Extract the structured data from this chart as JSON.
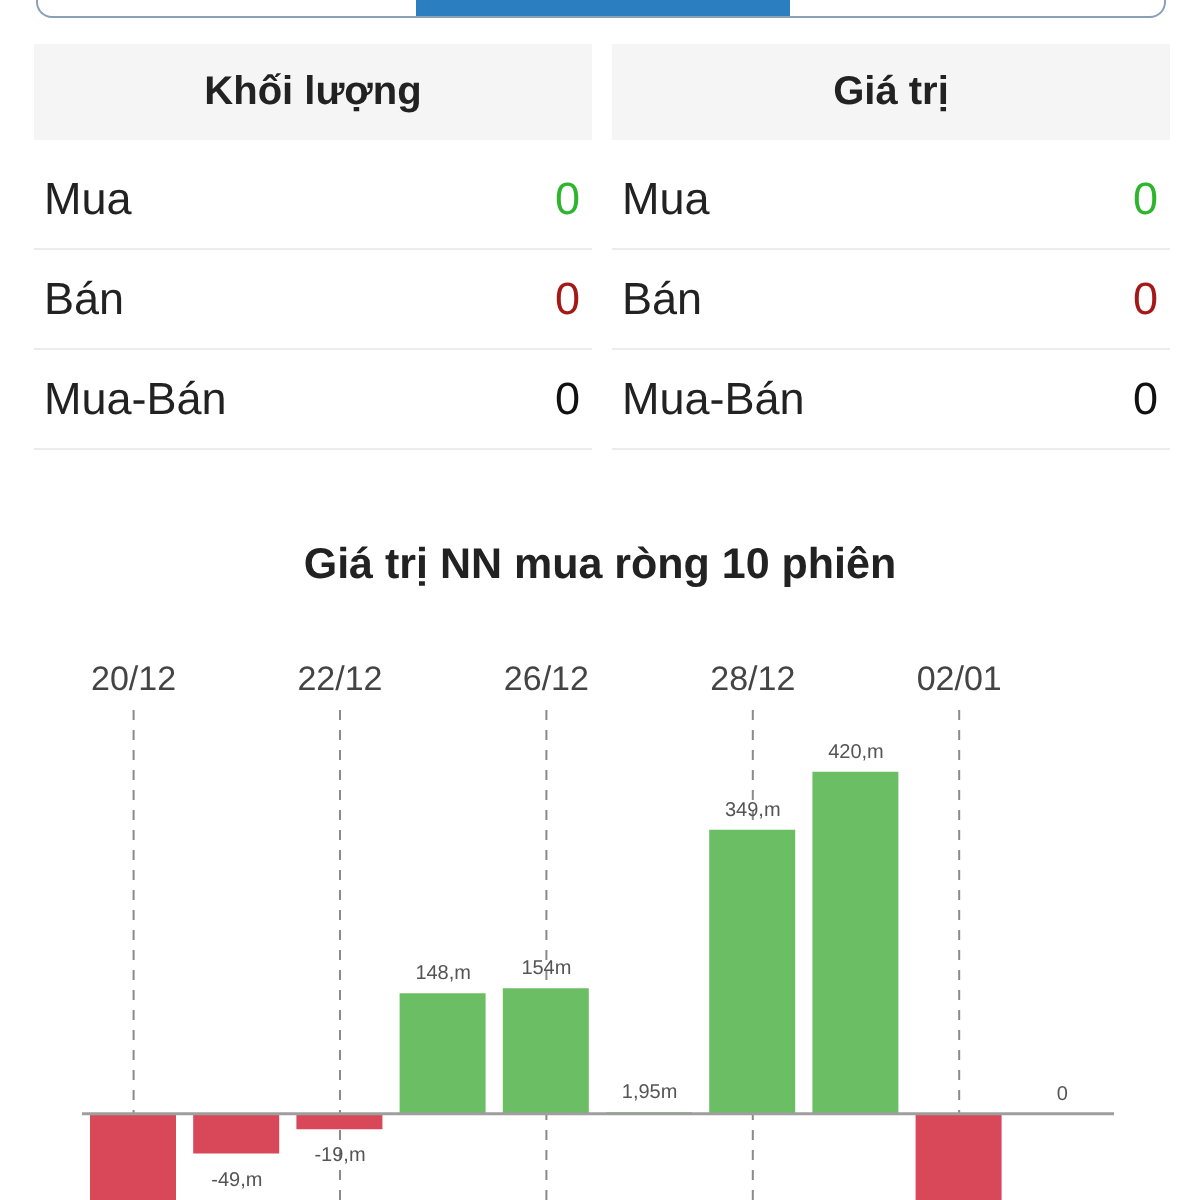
{
  "chart_data": [
    {
      "type": "other",
      "categories": [
        "Mua",
        "Bán",
        "Mua-Bán"
      ],
      "series": [
        {
          "name": "Khối lượng",
          "values": [
            0,
            0,
            0
          ],
          "colors": [
            "#2db52d",
            "#a51818",
            "#111111"
          ]
        },
        {
          "name": "Giá trị",
          "values": [
            0,
            0,
            0
          ],
          "colors": [
            "#2db52d",
            "#a51818",
            "#111111"
          ]
        }
      ],
      "data_labels": true
    },
    {
      "type": "bar",
      "title": "Giá trị NN mua ròng 10 phiên",
      "categories": [
        "20/12",
        null,
        "22/12",
        null,
        "26/12",
        null,
        "28/12",
        null,
        "02/01",
        null
      ],
      "values": [
        -106,
        -49,
        -19,
        148,
        154,
        1.95,
        349,
        420,
        -106,
        0
      ],
      "colors": [
        "#d84858",
        "#d84858",
        "#d84858",
        "#6cbe64",
        "#6cbe64",
        "#6cbe64",
        "#6cbe64",
        "#6cbe64",
        "#d84858",
        "#6cbe64"
      ],
      "value_labels": [
        null,
        "-49,m",
        "-19,m",
        "148,m",
        "154m",
        "1,95m",
        "349,m",
        "420,m",
        null,
        "0"
      ],
      "ylim": [
        -106,
        496
      ],
      "grid": "x",
      "tick_labels": "x",
      "ref_lines": [
        {
          "axis": "y",
          "value": 0,
          "color": "#9e9e9e"
        }
      ]
    }
  ]
}
